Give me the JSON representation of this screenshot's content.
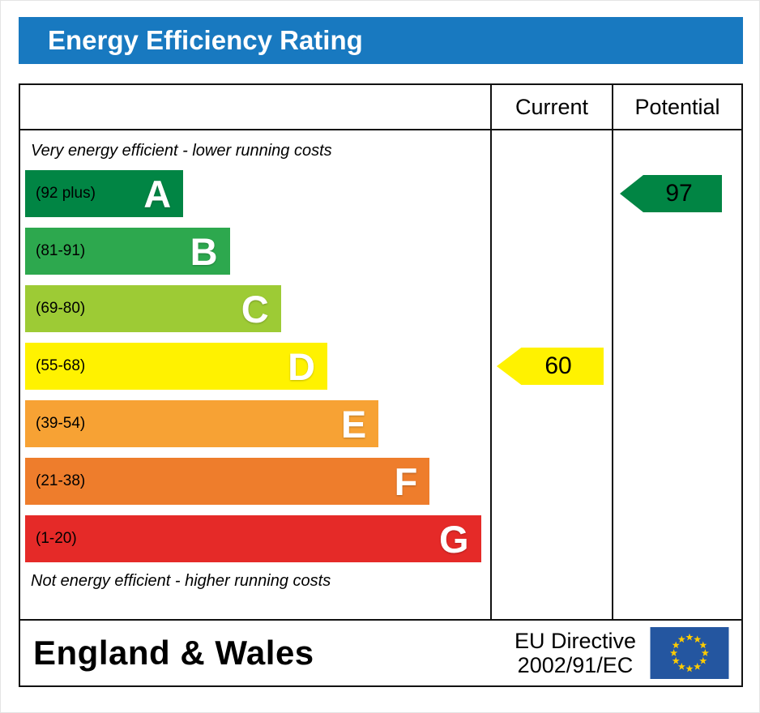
{
  "title": "Energy Efficiency Rating",
  "columns": {
    "current": "Current",
    "potential": "Potential"
  },
  "top_note": "Very energy efficient - lower running costs",
  "bottom_note": "Not energy efficient - higher running costs",
  "footer": {
    "region": "England & Wales",
    "directive_line1": "EU Directive",
    "directive_line2": "2002/91/EC"
  },
  "colors": {
    "title_bar": "#1879c0",
    "border": "#111111",
    "eu_flag_blue": "#2456a0",
    "eu_star_yellow": "#ffcc00"
  },
  "chart_data": {
    "type": "bar",
    "title": "Energy Efficiency Rating",
    "orientation": "horizontal",
    "bands": [
      {
        "letter": "A",
        "range": "(92 plus)",
        "color": "#018544",
        "width_pct": 34
      },
      {
        "letter": "B",
        "range": "(81-91)",
        "color": "#2da84e",
        "width_pct": 44
      },
      {
        "letter": "C",
        "range": "(69-80)",
        "color": "#9dcb35",
        "width_pct": 55
      },
      {
        "letter": "D",
        "range": "(55-68)",
        "color": "#fff200",
        "width_pct": 65
      },
      {
        "letter": "E",
        "range": "(39-54)",
        "color": "#f7a234",
        "width_pct": 76
      },
      {
        "letter": "F",
        "range": "(21-38)",
        "color": "#ee7d2c",
        "width_pct": 87
      },
      {
        "letter": "G",
        "range": "(1-20)",
        "color": "#e52a28",
        "width_pct": 98
      }
    ],
    "current": {
      "value": 60,
      "band": "D",
      "band_index": 3,
      "color": "#fff200"
    },
    "potential": {
      "value": 97,
      "band": "A",
      "band_index": 0,
      "color": "#018544"
    }
  }
}
